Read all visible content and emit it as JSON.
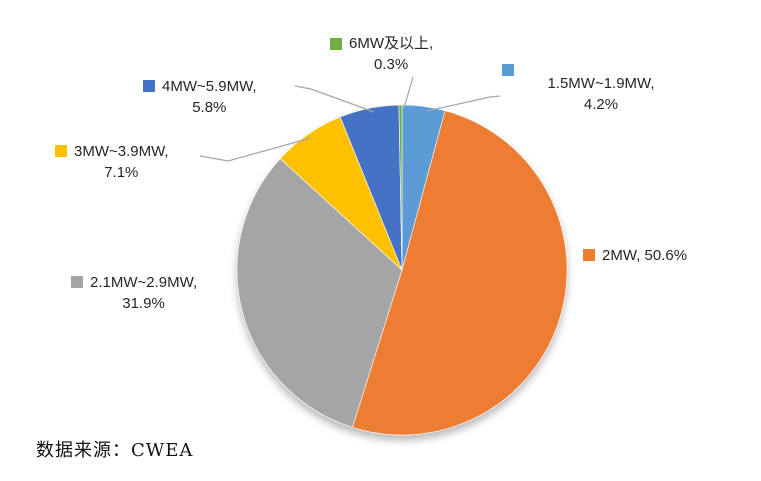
{
  "chart_data": {
    "type": "pie",
    "title": "",
    "start_angle_deg": 0,
    "direction": "clockwise",
    "legend_position": "callouts",
    "series": [
      {
        "label": "1.5MW~1.9MW",
        "value": 4.2,
        "color": "#5B9BD5"
      },
      {
        "label": "2MW",
        "value": 50.6,
        "color": "#ED7D31"
      },
      {
        "label": "2.1MW~2.9MW",
        "value": 31.9,
        "color": "#A5A5A5"
      },
      {
        "label": "3MW~3.9MW",
        "value": 7.1,
        "color": "#FFC000"
      },
      {
        "label": "4MW~5.9MW",
        "value": 5.8,
        "color": "#4472C4"
      },
      {
        "label": "6MW及以上",
        "value": 0.3,
        "color": "#70AD47"
      }
    ]
  },
  "callouts": {
    "green": {
      "line1": "6MW及以上,",
      "line2": "0.3%"
    },
    "lightblue": {
      "line1": "1.5MW~1.9MW,",
      "line2": "4.2%"
    },
    "darkblue": {
      "line1": "4MW~5.9MW,",
      "line2": "5.8%"
    },
    "yellow": {
      "line1": "3MW~3.9MW,",
      "line2": "7.1%"
    },
    "gray": {
      "line1": "2.1MW~2.9MW,",
      "line2": "31.9%"
    },
    "orange": {
      "line1": "2MW, 50.6%",
      "line2": ""
    }
  },
  "footer": {
    "source_text": "数据来源：CWEA"
  },
  "style": {
    "leader_line_color": "#A6A6A6",
    "label_text_color": "#262626",
    "background": "#FFFFFF"
  }
}
